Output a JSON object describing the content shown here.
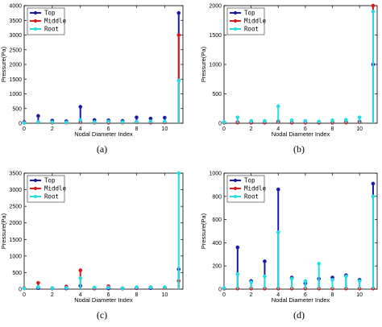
{
  "chart_data": [
    {
      "type": "stem",
      "panel": "(a)",
      "xlabel": "Nodal Diameter Index",
      "ylabel": "Pressure(Pa)",
      "xlim": [
        0,
        11.3
      ],
      "ylim": [
        0,
        4000
      ],
      "xticks": [
        "0",
        "2",
        "4",
        "6",
        "8",
        "10"
      ],
      "yticks": [
        "0",
        "500",
        "1000",
        "1500",
        "2000",
        "2500",
        "3000",
        "3500",
        "4000"
      ],
      "legend_position": "top-left",
      "x": [
        0,
        1,
        2,
        3,
        4,
        5,
        6,
        7,
        8,
        9,
        10,
        11
      ],
      "series": [
        {
          "name": "Top",
          "color": "#1a1aa8",
          "values": [
            40,
            250,
            90,
            70,
            560,
            110,
            100,
            80,
            200,
            160,
            190,
            3750
          ]
        },
        {
          "name": "Middle",
          "color": "#dd1a1a",
          "values": [
            20,
            30,
            20,
            20,
            40,
            20,
            20,
            20,
            30,
            20,
            30,
            3000
          ]
        },
        {
          "name": "Root",
          "color": "#22dde8",
          "values": [
            10,
            40,
            40,
            30,
            110,
            40,
            60,
            40,
            50,
            60,
            60,
            1450
          ]
        }
      ]
    },
    {
      "type": "stem",
      "panel": "(b)",
      "xlabel": "Nodal Diameter Index",
      "ylabel": "Pressure(Pa)",
      "xlim": [
        0,
        11.3
      ],
      "ylim": [
        0,
        2000
      ],
      "xticks": [
        "0",
        "2",
        "4",
        "6",
        "8",
        "10"
      ],
      "yticks": [
        "0",
        "500",
        "1000",
        "1500",
        "2000"
      ],
      "legend_position": "top-left",
      "x": [
        0,
        1,
        2,
        3,
        4,
        5,
        6,
        7,
        8,
        9,
        10,
        11
      ],
      "series": [
        {
          "name": "Top",
          "color": "#1a1aa8",
          "values": [
            10,
            20,
            10,
            10,
            30,
            10,
            10,
            10,
            10,
            20,
            30,
            1000
          ]
        },
        {
          "name": "Middle",
          "color": "#dd1a1a",
          "values": [
            10,
            10,
            10,
            10,
            20,
            10,
            10,
            10,
            10,
            10,
            20,
            2000
          ]
        },
        {
          "name": "Root",
          "color": "#22dde8",
          "values": [
            20,
            100,
            40,
            40,
            290,
            50,
            40,
            30,
            50,
            60,
            100,
            1900
          ]
        }
      ]
    },
    {
      "type": "stem",
      "panel": "(c)",
      "xlabel": "Nodal Diameter Index",
      "ylabel": "Pressure(Pa)",
      "xlim": [
        0,
        11.3
      ],
      "ylim": [
        0,
        3500
      ],
      "xticks": [
        "0",
        "2",
        "4",
        "6",
        "8",
        "10"
      ],
      "yticks": [
        "0",
        "500",
        "1000",
        "1500",
        "2000",
        "2500",
        "3000",
        "3500"
      ],
      "legend_position": "top-left",
      "x": [
        0,
        1,
        2,
        3,
        4,
        5,
        6,
        7,
        8,
        9,
        10,
        11
      ],
      "series": [
        {
          "name": "Top",
          "color": "#1a1aa8",
          "values": [
            20,
            30,
            20,
            20,
            100,
            20,
            20,
            20,
            30,
            30,
            40,
            600
          ]
        },
        {
          "name": "Middle",
          "color": "#dd1a1a",
          "values": [
            30,
            190,
            30,
            80,
            570,
            30,
            90,
            30,
            40,
            60,
            40,
            250
          ]
        },
        {
          "name": "Root",
          "color": "#22dde8",
          "values": [
            20,
            70,
            30,
            40,
            330,
            50,
            50,
            30,
            60,
            60,
            60,
            3500
          ]
        }
      ]
    },
    {
      "type": "stem",
      "panel": "(d)",
      "xlabel": "Nodal Diameter Index",
      "ylabel": "Pressure(Pa)",
      "xlim": [
        0,
        11.3
      ],
      "ylim": [
        0,
        1000
      ],
      "xticks": [
        "0",
        "2",
        "4",
        "6",
        "8",
        "10"
      ],
      "yticks": [
        "0",
        "200",
        "400",
        "600",
        "800",
        "1000"
      ],
      "legend_position": "top-left",
      "x": [
        0,
        1,
        2,
        3,
        4,
        5,
        6,
        7,
        8,
        9,
        10,
        11
      ],
      "series": [
        {
          "name": "Top",
          "color": "#1a1aa8",
          "values": [
            5,
            360,
            70,
            240,
            860,
            100,
            50,
            90,
            100,
            120,
            80,
            910
          ]
        },
        {
          "name": "Middle",
          "color": "#dd1a1a",
          "values": [
            5,
            5,
            5,
            5,
            5,
            5,
            5,
            5,
            5,
            5,
            5,
            5
          ]
        },
        {
          "name": "Root",
          "color": "#22dde8",
          "values": [
            10,
            130,
            60,
            110,
            490,
            90,
            70,
            220,
            80,
            110,
            70,
            800
          ]
        }
      ]
    }
  ]
}
